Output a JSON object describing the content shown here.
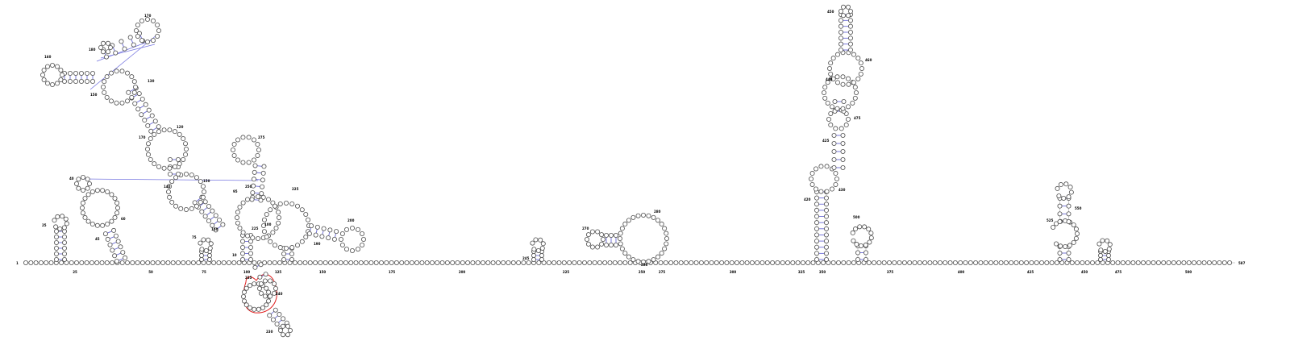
{
  "diagram": {
    "start_label": "1",
    "end_label": "587",
    "axis_labels": [
      "25",
      "50",
      "75",
      "100",
      "125",
      "150",
      "175",
      "200",
      "225",
      "250",
      "275",
      "300",
      "325",
      "350",
      "375",
      "400",
      "425",
      "450",
      "475",
      "500",
      "525",
      "550",
      "575"
    ],
    "colors": {
      "nucleotide_stroke": "#4d4d4d",
      "pair_line": "#6b6bd6",
      "highlight": "#e02020"
    }
  }
}
